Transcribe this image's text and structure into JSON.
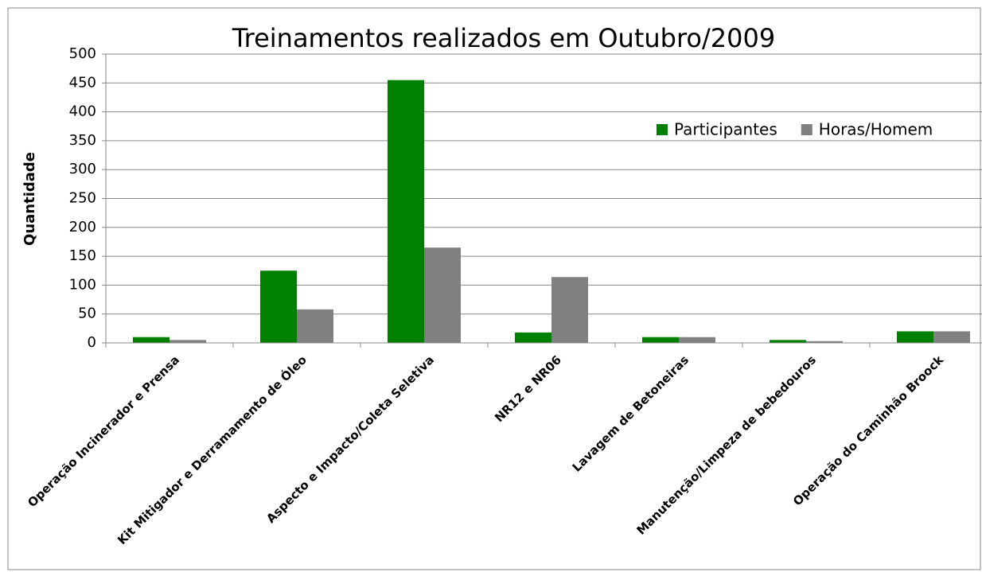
{
  "chart_data": {
    "type": "bar",
    "title": "Treinamentos realizados em Outubro/2009",
    "y_label": "Quantidade",
    "categories": [
      "Operação Incinerador e Prensa",
      "Kit Mitigador e Derramamento de Óleo",
      "Aspecto e Impacto/Coleta Seletiva",
      "NR12 e NR06",
      "Lavagem de Betoneiras",
      "Manutenção/Limpeza de bebedouros",
      "Operação do Caminhão Broock"
    ],
    "series": [
      {
        "name": "Participantes",
        "color": "#008000",
        "values": [
          10,
          125,
          455,
          18,
          10,
          5,
          20
        ]
      },
      {
        "name": "Horas/Homem",
        "color": "#808080",
        "values": [
          5,
          58,
          165,
          114,
          10,
          3,
          20
        ]
      }
    ],
    "ylim": [
      0,
      500
    ],
    "yticks": [
      0,
      50,
      100,
      150,
      200,
      250,
      300,
      350,
      400,
      450,
      500
    ],
    "grid": true,
    "legend": "upper right"
  }
}
